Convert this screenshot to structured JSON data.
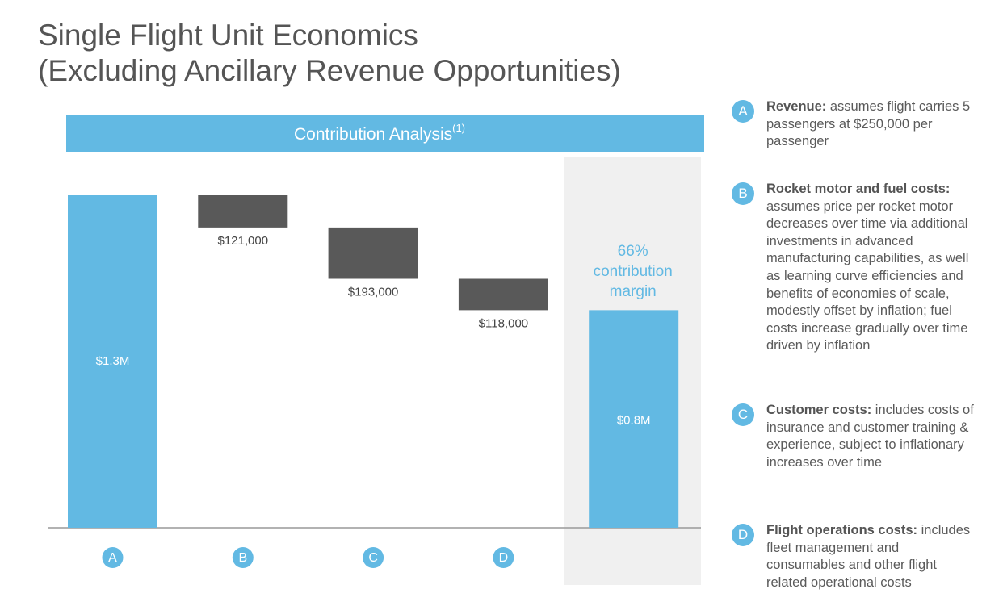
{
  "chart_data": {
    "type": "waterfall",
    "title": "Single Flight Unit Economics",
    "subtitle": "(Excluding Ancillary Revenue Opportunities)",
    "header": "Contribution Analysis",
    "header_note": "(1)",
    "categories": [
      "A",
      "B",
      "C",
      "D",
      null
    ],
    "values": [
      1250000,
      -121000,
      -193000,
      -118000,
      818000
    ],
    "value_labels": [
      "$1.3M",
      "$121,000",
      "$193,000",
      "$118,000",
      "$0.8M"
    ],
    "measure": [
      "absolute",
      "relative",
      "relative",
      "relative",
      "absolute"
    ],
    "colors": [
      "#62b9e3",
      "#595959",
      "#595959",
      "#595959",
      "#62b9e3"
    ],
    "annotation": [
      "66%",
      "contribution",
      "margin"
    ]
  },
  "notes": [
    {
      "letter": "A",
      "heading": "Revenue:",
      "text": "assumes flight carries 5 passengers at $250,000 per passenger"
    },
    {
      "letter": "B",
      "heading": "Rocket motor and fuel costs:",
      "text": "assumes price per rocket motor decreases over time via additional investments in advanced manufacturing capabilities, as well as learning curve efficiencies and benefits of economies of scale, modestly offset by inflation; fuel costs increase gradually over time driven by inflation"
    },
    {
      "letter": "C",
      "heading": "Customer costs:",
      "text": "includes costs of insurance and customer training & experience, subject to inflationary increases over time"
    },
    {
      "letter": "D",
      "heading": "Flight operations costs:",
      "text": "includes fleet management and consumables and other flight related operational costs"
    }
  ]
}
